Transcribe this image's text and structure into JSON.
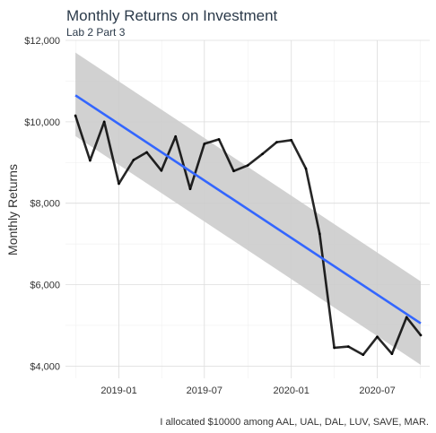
{
  "chart_data": {
    "type": "line",
    "title": "Monthly Returns on Investment",
    "subtitle": "Lab 2 Part 3",
    "xlabel": "",
    "ylabel": "Monthly Returns",
    "caption": "I allocated $10000 among AAL, UAL, DAL, LUV, SAVE, MAR.",
    "x_ticks": [
      "2019-01",
      "2019-07",
      "2020-01",
      "2020-07"
    ],
    "y_ticks": [
      "$4,000",
      "$6,000",
      "$8,000",
      "$10,000",
      "$12,000"
    ],
    "ylim": [
      3700,
      12000
    ],
    "xlim": [
      "2018-09-10",
      "2020-10-20"
    ],
    "grid": true,
    "series": [
      {
        "x": [
          "2018-10-01",
          "2018-11-01",
          "2018-12-01",
          "2019-01-01",
          "2019-02-01",
          "2019-03-01",
          "2019-04-01",
          "2019-05-01",
          "2019-06-01",
          "2019-07-01",
          "2019-08-01",
          "2019-09-01",
          "2019-10-01",
          "2019-11-01",
          "2019-12-01",
          "2020-01-01",
          "2020-02-01",
          "2020-03-01",
          "2020-04-01",
          "2020-05-01",
          "2020-06-01",
          "2020-07-01",
          "2020-08-01",
          "2020-09-01",
          "2020-10-01"
        ],
        "values": [
          10150,
          9050,
          10000,
          8480,
          9060,
          9250,
          8800,
          9640,
          8350,
          9460,
          9570,
          8790,
          8930,
          9210,
          9500,
          9550,
          8850,
          7250,
          4450,
          4480,
          4280,
          4720,
          4300,
          5200,
          4760
        ]
      }
    ],
    "trend": {
      "x": [
        "2018-10-01",
        "2020-10-01"
      ],
      "values": [
        10650,
        5050
      ],
      "band_lower": [
        9650,
        4030
      ],
      "band_upper": [
        11700,
        6080
      ],
      "color": "#3366ff",
      "band_color": "#cccccc"
    },
    "colors": {
      "line": "#000000",
      "grid": "#e0e0e0",
      "trend": "#3366ff",
      "band": "#cccccc"
    }
  }
}
